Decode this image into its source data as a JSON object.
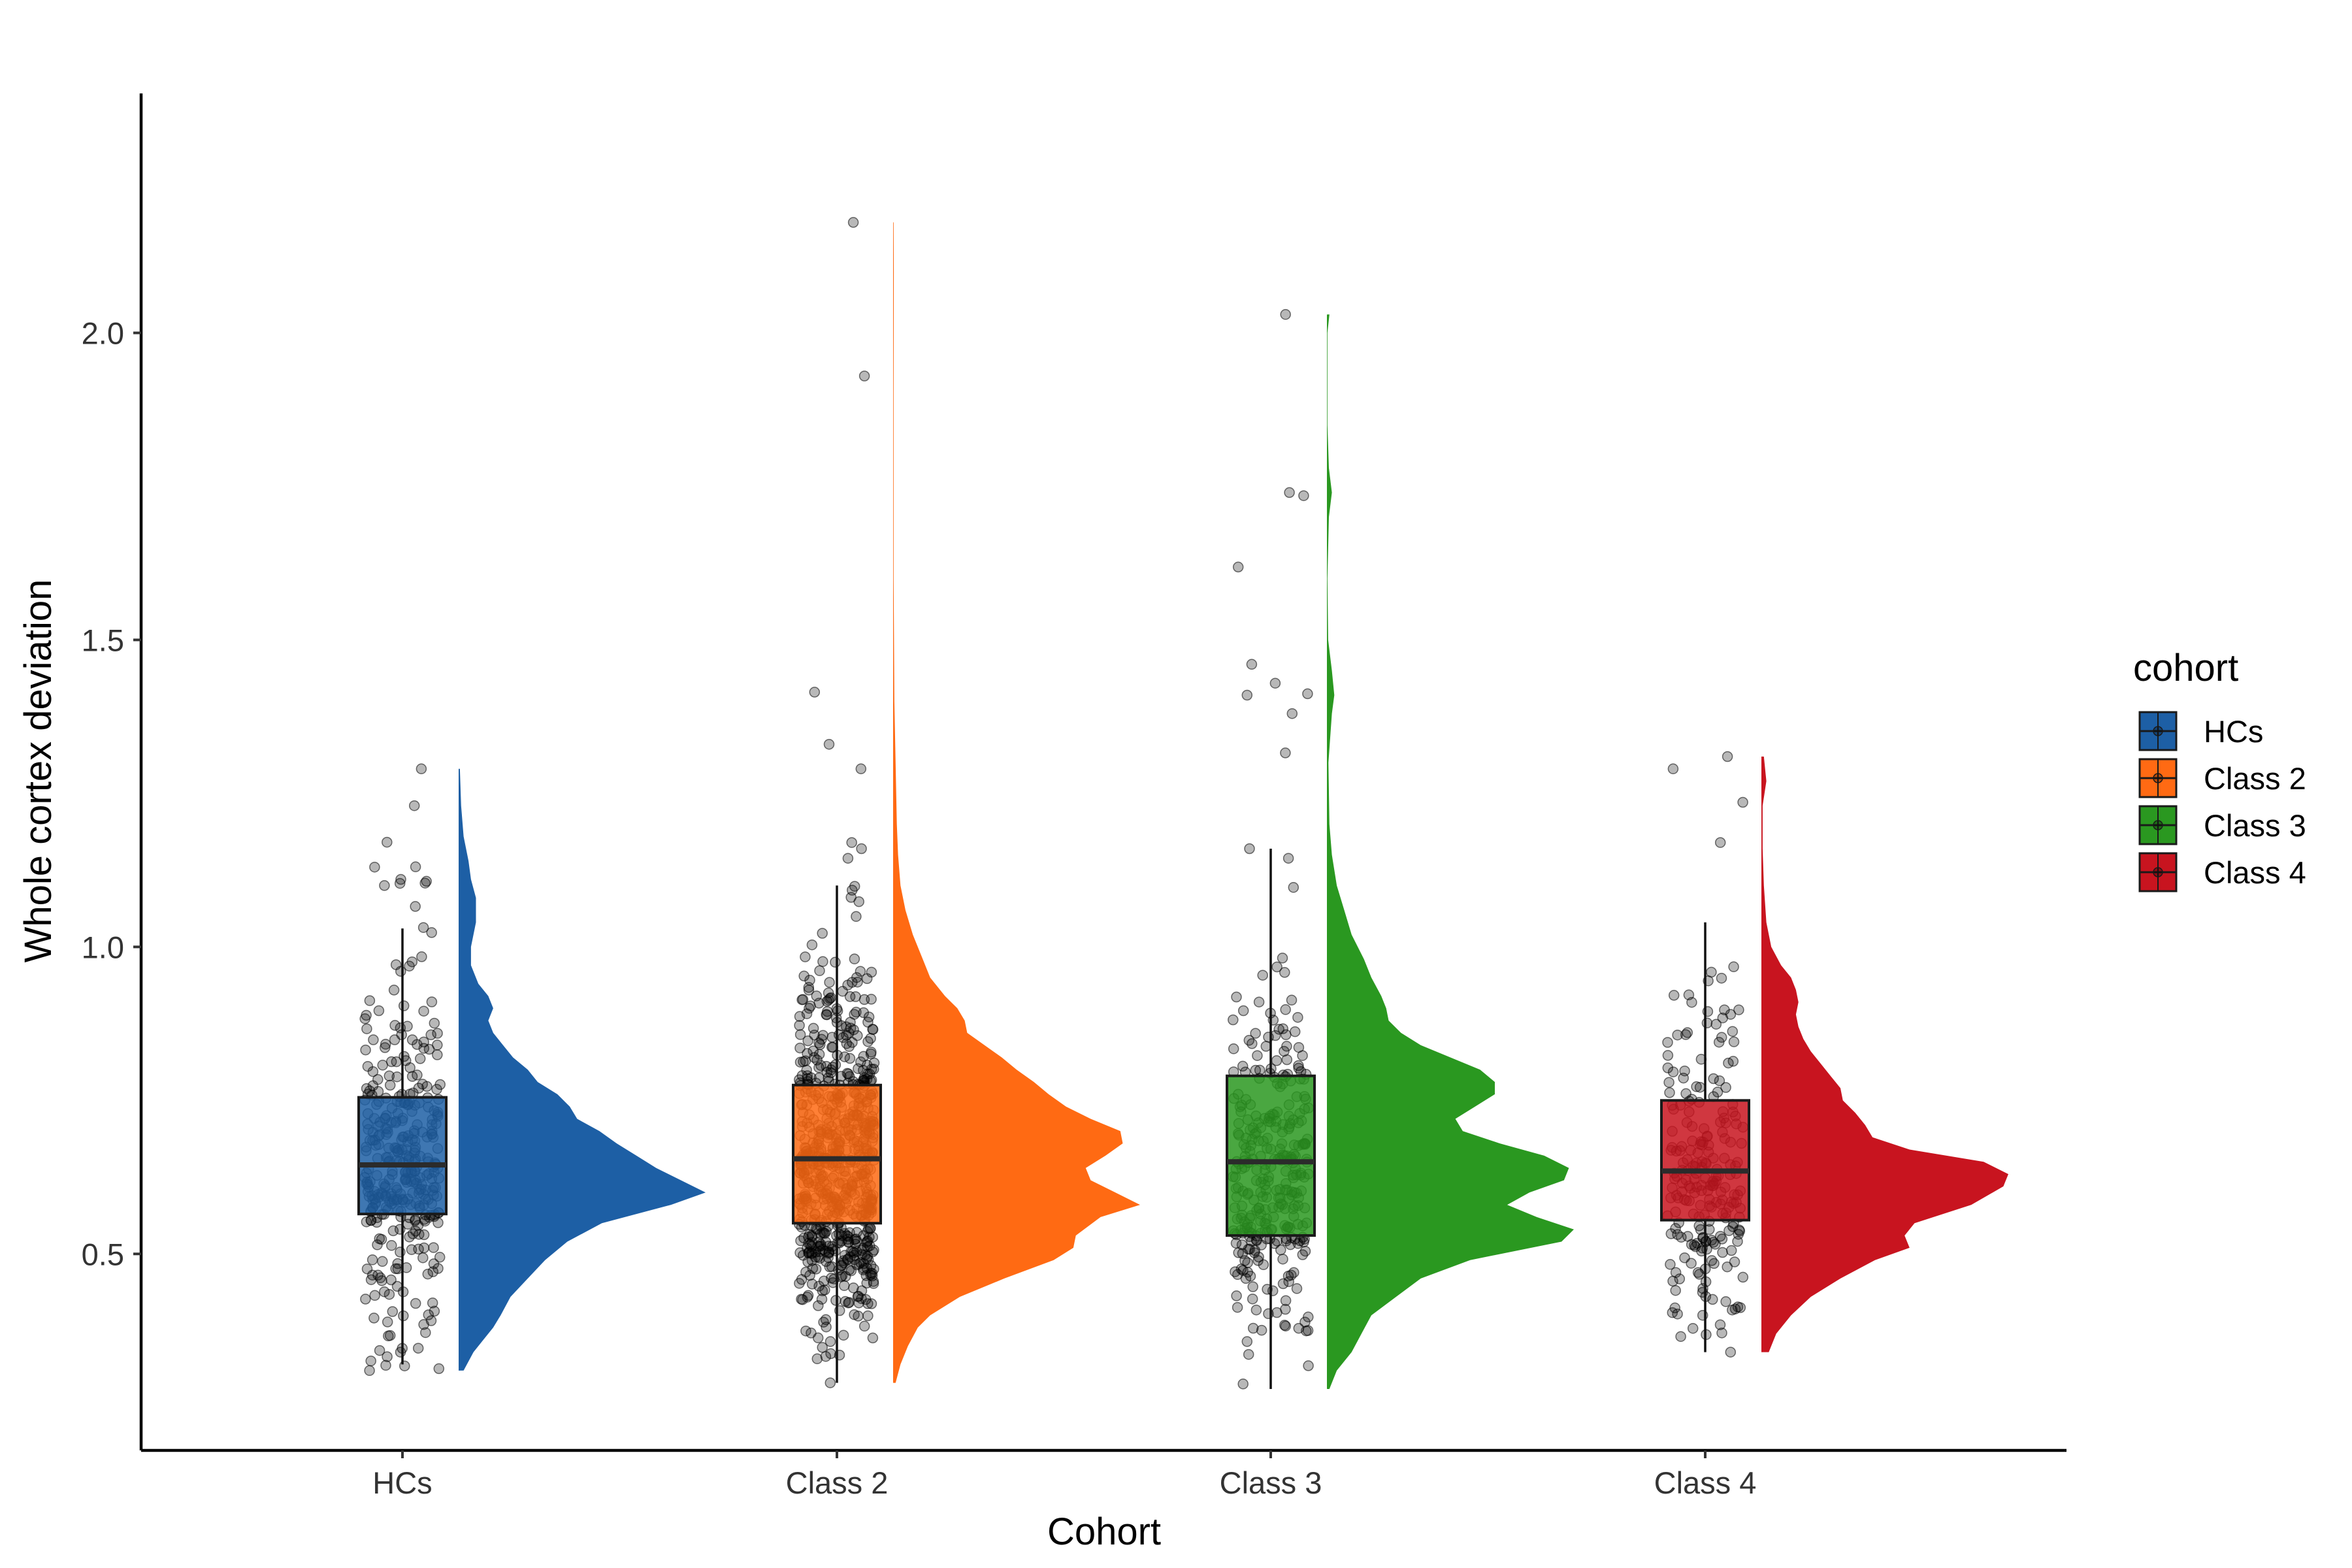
{
  "chart_data": {
    "type": "raincloud",
    "xlabel": "Cohort",
    "ylabel": "Whole cortex deviation",
    "ylim": [
      0.18,
      2.39
    ],
    "yticks": [
      0.5,
      1.0,
      1.5,
      2.0
    ],
    "ytick_labels": [
      "0.5",
      "1.0",
      "1.5",
      "2.0"
    ],
    "categories": [
      "HCs",
      "Class 2",
      "Class 3",
      "Class 4"
    ],
    "legend": {
      "title": "cohort",
      "position": "right",
      "entries": [
        "HCs",
        "Class 2",
        "Class 3",
        "Class 4"
      ]
    },
    "grid": false,
    "series": [
      {
        "name": "HCs",
        "color": "#1D5FA5",
        "box": {
          "whisker_low": 0.32,
          "q1": 0.565,
          "median": 0.645,
          "q3": 0.755,
          "whisker_high": 1.03
        },
        "n_points": 360,
        "points_range": [
          0.31,
          1.29
        ],
        "outliers": [
          1.29,
          1.23,
          1.13,
          1.11,
          1.1
        ],
        "density": [
          [
            0.31,
            0.02
          ],
          [
            0.34,
            0.06
          ],
          [
            0.36,
            0.1
          ],
          [
            0.38,
            0.14
          ],
          [
            0.4,
            0.17
          ],
          [
            0.43,
            0.21
          ],
          [
            0.46,
            0.28
          ],
          [
            0.49,
            0.35
          ],
          [
            0.52,
            0.44
          ],
          [
            0.55,
            0.58
          ],
          [
            0.58,
            0.86
          ],
          [
            0.6,
            1.0
          ],
          [
            0.62,
            0.9
          ],
          [
            0.64,
            0.8
          ],
          [
            0.66,
            0.72
          ],
          [
            0.68,
            0.64
          ],
          [
            0.7,
            0.57
          ],
          [
            0.72,
            0.48
          ],
          [
            0.74,
            0.45
          ],
          [
            0.76,
            0.4
          ],
          [
            0.78,
            0.32
          ],
          [
            0.8,
            0.28
          ],
          [
            0.82,
            0.22
          ],
          [
            0.84,
            0.18
          ],
          [
            0.86,
            0.14
          ],
          [
            0.88,
            0.12
          ],
          [
            0.9,
            0.14
          ],
          [
            0.92,
            0.12
          ],
          [
            0.94,
            0.08
          ],
          [
            0.97,
            0.05
          ],
          [
            1.0,
            0.05
          ],
          [
            1.04,
            0.07
          ],
          [
            1.08,
            0.07
          ],
          [
            1.11,
            0.05
          ],
          [
            1.14,
            0.04
          ],
          [
            1.18,
            0.02
          ],
          [
            1.23,
            0.01
          ],
          [
            1.29,
            0.005
          ]
        ]
      },
      {
        "name": "Class 2",
        "color": "#FF6A13",
        "box": {
          "whisker_low": 0.29,
          "q1": 0.55,
          "median": 0.655,
          "q3": 0.775,
          "whisker_high": 1.1
        },
        "n_points": 720,
        "points_range": [
          0.29,
          2.18
        ],
        "outliers": [
          2.18,
          1.33,
          1.29,
          1.17,
          1.16
        ],
        "density": [
          [
            0.29,
            0.01
          ],
          [
            0.32,
            0.03
          ],
          [
            0.35,
            0.06
          ],
          [
            0.38,
            0.1
          ],
          [
            0.4,
            0.15
          ],
          [
            0.43,
            0.27
          ],
          [
            0.46,
            0.45
          ],
          [
            0.49,
            0.65
          ],
          [
            0.51,
            0.73
          ],
          [
            0.53,
            0.74
          ],
          [
            0.56,
            0.84
          ],
          [
            0.58,
            1.0
          ],
          [
            0.6,
            0.9
          ],
          [
            0.62,
            0.8
          ],
          [
            0.64,
            0.78
          ],
          [
            0.66,
            0.86
          ],
          [
            0.68,
            0.93
          ],
          [
            0.7,
            0.92
          ],
          [
            0.72,
            0.8
          ],
          [
            0.74,
            0.7
          ],
          [
            0.76,
            0.63
          ],
          [
            0.78,
            0.57
          ],
          [
            0.8,
            0.5
          ],
          [
            0.82,
            0.44
          ],
          [
            0.84,
            0.37
          ],
          [
            0.86,
            0.3
          ],
          [
            0.88,
            0.29
          ],
          [
            0.9,
            0.26
          ],
          [
            0.92,
            0.21
          ],
          [
            0.95,
            0.15
          ],
          [
            0.98,
            0.12
          ],
          [
            1.02,
            0.08
          ],
          [
            1.06,
            0.05
          ],
          [
            1.1,
            0.03
          ],
          [
            1.15,
            0.02
          ],
          [
            1.2,
            0.015
          ],
          [
            1.3,
            0.01
          ],
          [
            1.4,
            0.005
          ],
          [
            1.6,
            0.002
          ],
          [
            1.9,
            0.002
          ],
          [
            2.1,
            0.003
          ],
          [
            2.18,
            0.002
          ]
        ]
      },
      {
        "name": "Class 3",
        "color": "#2A9820",
        "box": {
          "whisker_low": 0.28,
          "q1": 0.53,
          "median": 0.65,
          "q3": 0.79,
          "whisker_high": 1.16
        },
        "n_points": 330,
        "points_range": [
          0.28,
          2.03
        ],
        "outliers": [
          2.03,
          1.74,
          1.41,
          1.38,
          1.16
        ],
        "density": [
          [
            0.28,
            0.01
          ],
          [
            0.31,
            0.04
          ],
          [
            0.34,
            0.1
          ],
          [
            0.37,
            0.14
          ],
          [
            0.4,
            0.18
          ],
          [
            0.43,
            0.28
          ],
          [
            0.46,
            0.38
          ],
          [
            0.49,
            0.58
          ],
          [
            0.52,
            0.95
          ],
          [
            0.54,
            1.0
          ],
          [
            0.56,
            0.85
          ],
          [
            0.58,
            0.73
          ],
          [
            0.6,
            0.82
          ],
          [
            0.62,
            0.96
          ],
          [
            0.64,
            0.98
          ],
          [
            0.66,
            0.88
          ],
          [
            0.68,
            0.7
          ],
          [
            0.7,
            0.55
          ],
          [
            0.72,
            0.52
          ],
          [
            0.74,
            0.6
          ],
          [
            0.76,
            0.68
          ],
          [
            0.78,
            0.68
          ],
          [
            0.8,
            0.62
          ],
          [
            0.82,
            0.5
          ],
          [
            0.84,
            0.38
          ],
          [
            0.86,
            0.3
          ],
          [
            0.88,
            0.25
          ],
          [
            0.9,
            0.24
          ],
          [
            0.92,
            0.22
          ],
          [
            0.95,
            0.18
          ],
          [
            0.98,
            0.15
          ],
          [
            1.02,
            0.1
          ],
          [
            1.06,
            0.07
          ],
          [
            1.1,
            0.04
          ],
          [
            1.15,
            0.02
          ],
          [
            1.2,
            0.01
          ],
          [
            1.3,
            0.006
          ],
          [
            1.38,
            0.02
          ],
          [
            1.41,
            0.03
          ],
          [
            1.45,
            0.02
          ],
          [
            1.5,
            0.005
          ],
          [
            1.6,
            0.002
          ],
          [
            1.7,
            0.008
          ],
          [
            1.74,
            0.02
          ],
          [
            1.78,
            0.008
          ],
          [
            1.85,
            0.002
          ],
          [
            2.0,
            0.002
          ],
          [
            2.03,
            0.01
          ]
        ]
      },
      {
        "name": "Class 4",
        "color": "#C8141F",
        "box": {
          "whisker_low": 0.34,
          "q1": 0.555,
          "median": 0.635,
          "q3": 0.75,
          "whisker_high": 1.04
        },
        "n_points": 230,
        "points_range": [
          0.34,
          1.31
        ],
        "outliers": [
          1.31,
          1.29,
          1.17
        ],
        "density": [
          [
            0.34,
            0.03
          ],
          [
            0.37,
            0.06
          ],
          [
            0.4,
            0.12
          ],
          [
            0.43,
            0.2
          ],
          [
            0.46,
            0.32
          ],
          [
            0.49,
            0.46
          ],
          [
            0.51,
            0.6
          ],
          [
            0.53,
            0.58
          ],
          [
            0.55,
            0.62
          ],
          [
            0.58,
            0.85
          ],
          [
            0.61,
            0.98
          ],
          [
            0.63,
            1.0
          ],
          [
            0.65,
            0.9
          ],
          [
            0.67,
            0.6
          ],
          [
            0.69,
            0.45
          ],
          [
            0.71,
            0.42
          ],
          [
            0.73,
            0.38
          ],
          [
            0.75,
            0.33
          ],
          [
            0.77,
            0.32
          ],
          [
            0.79,
            0.28
          ],
          [
            0.81,
            0.24
          ],
          [
            0.83,
            0.2
          ],
          [
            0.85,
            0.17
          ],
          [
            0.87,
            0.15
          ],
          [
            0.89,
            0.14
          ],
          [
            0.91,
            0.15
          ],
          [
            0.93,
            0.14
          ],
          [
            0.95,
            0.12
          ],
          [
            0.97,
            0.08
          ],
          [
            1.0,
            0.04
          ],
          [
            1.04,
            0.02
          ],
          [
            1.1,
            0.01
          ],
          [
            1.16,
            0.005
          ],
          [
            1.23,
            0.005
          ],
          [
            1.27,
            0.02
          ],
          [
            1.31,
            0.01
          ]
        ]
      }
    ]
  }
}
